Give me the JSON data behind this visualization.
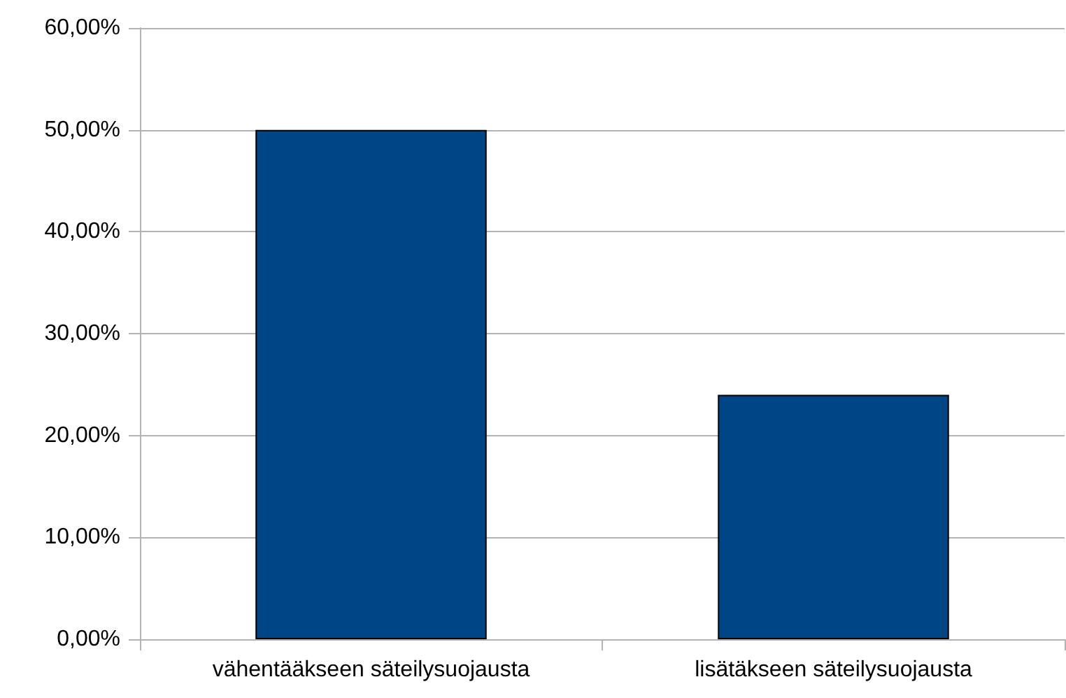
{
  "chart_data": {
    "type": "bar",
    "categories": [
      "vähentääkseen säteilysuojausta",
      "lisätäkseen säteilysuojausta"
    ],
    "values": [
      50,
      24
    ],
    "color": "#004586",
    "ylim": [
      0,
      60
    ],
    "yticks": [
      {
        "value": 0,
        "label": "0,00%"
      },
      {
        "value": 10,
        "label": "10,00%"
      },
      {
        "value": 20,
        "label": "20,00%"
      },
      {
        "value": 30,
        "label": "30,00%"
      },
      {
        "value": 40,
        "label": "40,00%"
      },
      {
        "value": 50,
        "label": "50,00%"
      },
      {
        "value": 60,
        "label": "60,00%"
      }
    ],
    "grid": "y"
  }
}
